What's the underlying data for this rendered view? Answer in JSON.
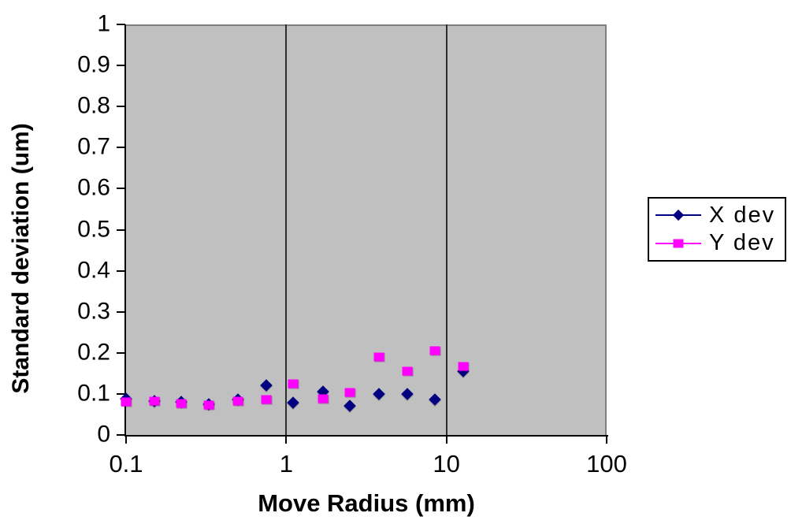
{
  "chart_data": {
    "type": "scatter",
    "title": "",
    "xlabel": "Move Radius (mm)",
    "ylabel": "Standard deviation (um)",
    "x_scale": "log",
    "xlim": [
      0.1,
      100
    ],
    "ylim": [
      0,
      1
    ],
    "x_tick_values": [
      0.1,
      1,
      10,
      100
    ],
    "x_tick_labels": [
      "0.1",
      "1",
      "10",
      "100"
    ],
    "y_tick_values": [
      0,
      0.1,
      0.2,
      0.3,
      0.4,
      0.5,
      0.6,
      0.7,
      0.8,
      0.9,
      1
    ],
    "y_tick_labels": [
      "0",
      "0.1",
      "0.2",
      "0.3",
      "0.4",
      "0.5",
      "0.6",
      "0.7",
      "0.8",
      "0.9",
      "1"
    ],
    "x_gridline_values": [
      1,
      10
    ],
    "grid": "vertical-only",
    "legend_position": "right",
    "x": [
      0.1,
      0.15,
      0.22,
      0.33,
      0.5,
      0.75,
      1.1,
      1.7,
      2.5,
      3.8,
      5.7,
      8.5,
      12.8
    ],
    "series": [
      {
        "name": "X dev",
        "marker": "diamond",
        "color": "#000080",
        "values": [
          0.088,
          0.083,
          0.08,
          0.075,
          0.086,
          0.121,
          0.079,
          0.106,
          0.071,
          0.1,
          0.1,
          0.086,
          0.155
        ]
      },
      {
        "name": "Y dev",
        "marker": "square",
        "color": "#FF00FF",
        "values": [
          0.08,
          0.083,
          0.076,
          0.072,
          0.082,
          0.087,
          0.125,
          0.089,
          0.103,
          0.19,
          0.156,
          0.205,
          0.167
        ]
      }
    ],
    "colors": {
      "plot_bg": "#C0C0C0",
      "plot_border": "#808080",
      "axis": "#000000",
      "gridline": "#2e2e2e",
      "page_bg": "#FFFFFF",
      "legend_border": "#000000"
    }
  }
}
